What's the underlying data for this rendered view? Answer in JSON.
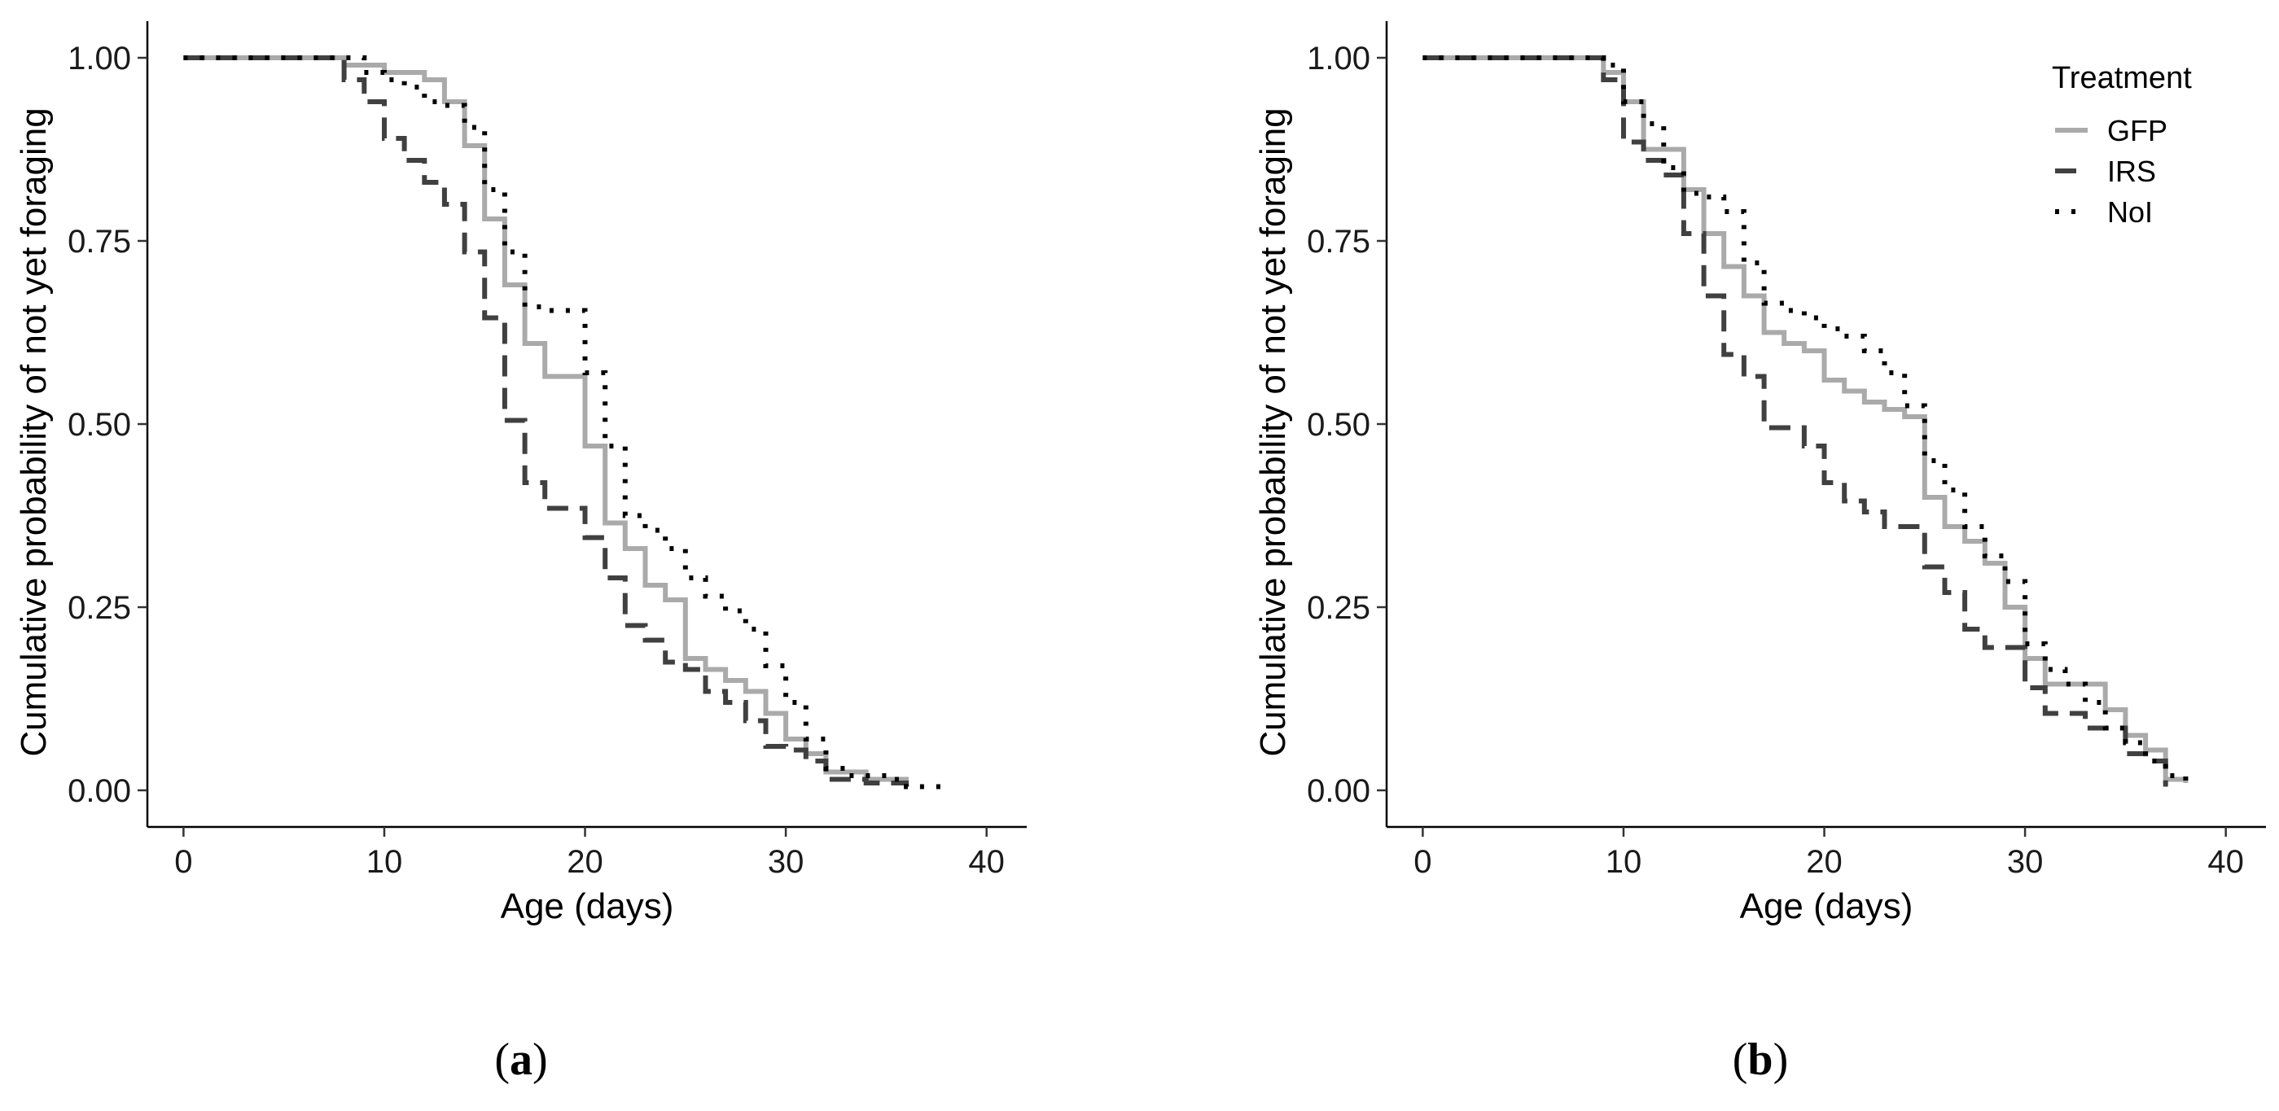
{
  "styles": {
    "GFP": {
      "color": "#aaaaaa",
      "dash": "none",
      "width": 6
    },
    "IRS": {
      "color": "#404040",
      "dash": "26 14",
      "width": 6
    },
    "NoI": {
      "color": "#000000",
      "dash": "5 15",
      "width": 6
    }
  },
  "chart_data": [
    {
      "type": "line",
      "step": true,
      "panel_label": "a",
      "title": "",
      "xlabel": "Age (days)",
      "ylabel": "Cumulative probability of not yet foraging",
      "xlim": [
        -1.8,
        42
      ],
      "ylim": [
        -0.05,
        1.05
      ],
      "xticks": [
        0,
        10,
        20,
        30,
        40
      ],
      "yticks": [
        0.0,
        0.25,
        0.5,
        0.75,
        1.0
      ],
      "xtick_labels": [
        "0",
        "10",
        "20",
        "30",
        "40"
      ],
      "ytick_labels": [
        "0.00",
        "0.25",
        "0.50",
        "0.75",
        "1.00"
      ],
      "legend": null,
      "series": [
        {
          "name": "GFP",
          "x": [
            0,
            8,
            10,
            12,
            13,
            14,
            15,
            16,
            17,
            18,
            20,
            21,
            22,
            23,
            24,
            25,
            26,
            27,
            28,
            29,
            30,
            31,
            32,
            34,
            36
          ],
          "y": [
            1.0,
            0.99,
            0.98,
            0.97,
            0.94,
            0.88,
            0.78,
            0.69,
            0.61,
            0.565,
            0.47,
            0.365,
            0.33,
            0.28,
            0.26,
            0.18,
            0.165,
            0.15,
            0.135,
            0.105,
            0.07,
            0.05,
            0.025,
            0.015,
            0.01
          ]
        },
        {
          "name": "IRS",
          "x": [
            0,
            8,
            9,
            10,
            11,
            12,
            13,
            14,
            15,
            16,
            17,
            18,
            20,
            21,
            22,
            23,
            24,
            25,
            26,
            27,
            28,
            29,
            30,
            31,
            32,
            34,
            36
          ],
          "y": [
            1.0,
            0.97,
            0.94,
            0.89,
            0.86,
            0.83,
            0.8,
            0.735,
            0.645,
            0.505,
            0.42,
            0.385,
            0.345,
            0.29,
            0.225,
            0.205,
            0.175,
            0.165,
            0.135,
            0.12,
            0.095,
            0.06,
            0.055,
            0.04,
            0.015,
            0.01,
            0.005
          ]
        },
        {
          "name": "NoI",
          "x": [
            0,
            9,
            10,
            11,
            12,
            13,
            14,
            15,
            16,
            17,
            18,
            20,
            21,
            22,
            23,
            24,
            25,
            26,
            27,
            28,
            29,
            30,
            31,
            32,
            33,
            35,
            36,
            38
          ],
          "y": [
            1.0,
            0.98,
            0.97,
            0.96,
            0.94,
            0.935,
            0.905,
            0.82,
            0.735,
            0.66,
            0.655,
            0.57,
            0.47,
            0.375,
            0.355,
            0.33,
            0.29,
            0.265,
            0.245,
            0.22,
            0.17,
            0.12,
            0.07,
            0.03,
            0.02,
            0.015,
            0.005,
            0.005
          ]
        }
      ]
    },
    {
      "type": "line",
      "step": true,
      "panel_label": "b",
      "title": "",
      "xlabel": "Age (days)",
      "ylabel": "Cumulative probability of not yet foraging",
      "xlim": [
        -1.8,
        42
      ],
      "ylim": [
        -0.05,
        1.05
      ],
      "xticks": [
        0,
        10,
        20,
        30,
        40
      ],
      "yticks": [
        0.0,
        0.25,
        0.5,
        0.75,
        1.0
      ],
      "xtick_labels": [
        "0",
        "10",
        "20",
        "30",
        "40"
      ],
      "ytick_labels": [
        "0.00",
        "0.25",
        "0.50",
        "0.75",
        "1.00"
      ],
      "legend": {
        "title": "Treatment",
        "position": "top-right",
        "entries": [
          "GFP",
          "IRS",
          "NoI"
        ]
      },
      "series": [
        {
          "name": "GFP",
          "x": [
            0,
            9,
            10,
            11,
            13,
            14,
            15,
            16,
            17,
            18,
            19,
            20,
            21,
            22,
            23,
            24,
            25,
            26,
            27,
            28,
            29,
            30,
            31,
            33,
            34,
            35,
            36,
            37,
            38
          ],
          "y": [
            1.0,
            0.98,
            0.94,
            0.875,
            0.82,
            0.76,
            0.715,
            0.675,
            0.625,
            0.61,
            0.6,
            0.56,
            0.545,
            0.53,
            0.52,
            0.51,
            0.4,
            0.36,
            0.34,
            0.31,
            0.25,
            0.18,
            0.145,
            0.145,
            0.11,
            0.075,
            0.055,
            0.015,
            0.01
          ]
        },
        {
          "name": "IRS",
          "x": [
            0,
            9,
            10,
            11,
            12,
            13,
            14,
            15,
            16,
            17,
            19,
            20,
            21,
            22,
            23,
            25,
            26,
            27,
            28,
            30,
            31,
            33,
            35,
            36,
            37
          ],
          "y": [
            1.0,
            0.97,
            0.885,
            0.86,
            0.84,
            0.76,
            0.675,
            0.595,
            0.565,
            0.495,
            0.47,
            0.42,
            0.395,
            0.38,
            0.36,
            0.305,
            0.27,
            0.22,
            0.195,
            0.14,
            0.105,
            0.085,
            0.05,
            0.04,
            0.005
          ]
        },
        {
          "name": "NoI",
          "x": [
            0,
            9,
            10,
            11,
            12,
            13,
            14,
            15,
            16,
            17,
            18,
            19,
            20,
            21,
            22,
            23,
            24,
            25,
            26,
            27,
            28,
            29,
            30,
            31,
            32,
            33,
            34,
            35,
            36,
            37,
            38
          ],
          "y": [
            1.0,
            0.99,
            0.94,
            0.91,
            0.85,
            0.815,
            0.81,
            0.79,
            0.72,
            0.665,
            0.655,
            0.645,
            0.63,
            0.62,
            0.6,
            0.57,
            0.525,
            0.45,
            0.41,
            0.36,
            0.32,
            0.285,
            0.2,
            0.165,
            0.145,
            0.12,
            0.085,
            0.065,
            0.04,
            0.02,
            0.01
          ]
        }
      ]
    }
  ]
}
